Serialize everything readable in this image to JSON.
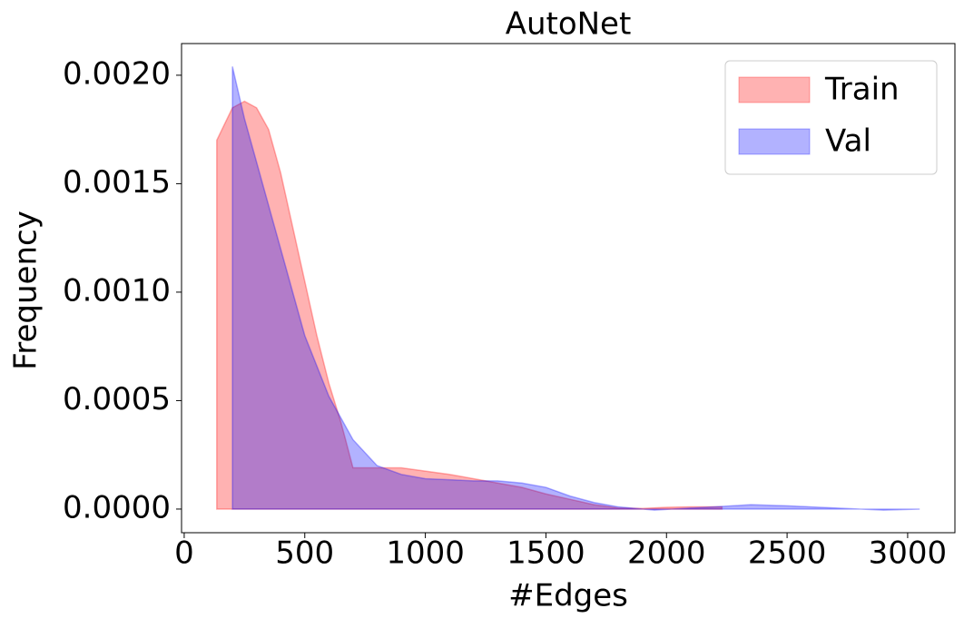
{
  "chart_data": {
    "type": "area",
    "title": "AutoNet",
    "x_label": "#Edges",
    "y_label": "Frequency",
    "series": [
      {
        "name": "Train",
        "color": "#ff0000",
        "x": [
          135,
          200,
          250,
          300,
          350,
          400,
          450,
          500,
          550,
          600,
          650,
          700,
          800,
          900,
          1000,
          1100,
          1200,
          1300,
          1400,
          1500,
          1600,
          1700,
          1800,
          1900,
          2000,
          2100,
          2230
        ],
        "values": [
          0.0017,
          0.00185,
          0.00188,
          0.00185,
          0.00175,
          0.00155,
          0.0013,
          0.00105,
          0.0008,
          0.00058,
          0.0004,
          0.00019,
          0.00019,
          0.00019,
          0.000175,
          0.00016,
          0.00014,
          0.00012,
          0.0001,
          7e-05,
          4.5e-05,
          2e-05,
          5e-06,
          3e-06,
          8e-06,
          1e-05,
          1e-05
        ]
      },
      {
        "name": "Val",
        "color": "#0000ff",
        "x": [
          200,
          250,
          300,
          400,
          500,
          600,
          700,
          800,
          900,
          1000,
          1100,
          1200,
          1300,
          1400,
          1500,
          1600,
          1700,
          1800,
          1950,
          2100,
          2200,
          2350,
          2500,
          2700,
          2900,
          3050
        ],
        "values": [
          0.00204,
          0.0018,
          0.0016,
          0.0012,
          0.0008,
          0.00052,
          0.00032,
          0.0002,
          0.00016,
          0.00014,
          0.000135,
          0.00013,
          0.00013,
          0.00012,
          0.0001,
          6e-05,
          3e-05,
          1e-05,
          -5e-06,
          5e-06,
          1e-05,
          2e-05,
          1.5e-05,
          5e-06,
          -5e-06,
          0
        ]
      }
    ],
    "xlim": [
      -11,
      3196
    ],
    "xticks": [
      0,
      500,
      1000,
      1500,
      2000,
      2500,
      3000
    ],
    "ylim": [
      -0.000109,
      0.002146
    ],
    "yticks": [
      {
        "value": 0,
        "label": "0.0000"
      },
      {
        "value": 0.0005,
        "label": "0.0005"
      },
      {
        "value": 0.001,
        "label": "0.0010"
      },
      {
        "value": 0.0015,
        "label": "0.0015"
      },
      {
        "value": 0.002,
        "label": "0.0020"
      }
    ],
    "legend": "upper right",
    "opacity": 0.3
  }
}
